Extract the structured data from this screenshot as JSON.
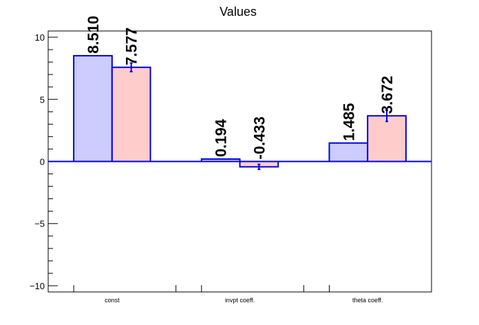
{
  "chart_data": {
    "type": "bar",
    "title": "Values",
    "xlabel": "",
    "ylabel": "",
    "ylim": [
      -10.5,
      10.5
    ],
    "yticks": [
      -10,
      -5,
      0,
      5,
      10
    ],
    "ytick_labels": [
      "−10",
      "−5",
      "0",
      "5",
      "10"
    ],
    "categories": [
      "const",
      "invpt coeff.",
      "theta coeff."
    ],
    "series": [
      {
        "values": [
          8.51,
          0.194,
          1.485
        ],
        "errors": [
          0,
          0,
          0
        ],
        "labels": [
          "8.510",
          "0.194",
          "1.485"
        ],
        "fill": "#ccccff",
        "stroke": "#0000dd"
      },
      {
        "values": [
          7.577,
          -0.433,
          3.672
        ],
        "errors": [
          0.35,
          0.2,
          0.45
        ],
        "labels": [
          "7.577",
          "-0.433",
          "3.672"
        ],
        "fill": "#ffcccc",
        "stroke": "#0000dd"
      }
    ],
    "grid": false,
    "legend": "none"
  }
}
